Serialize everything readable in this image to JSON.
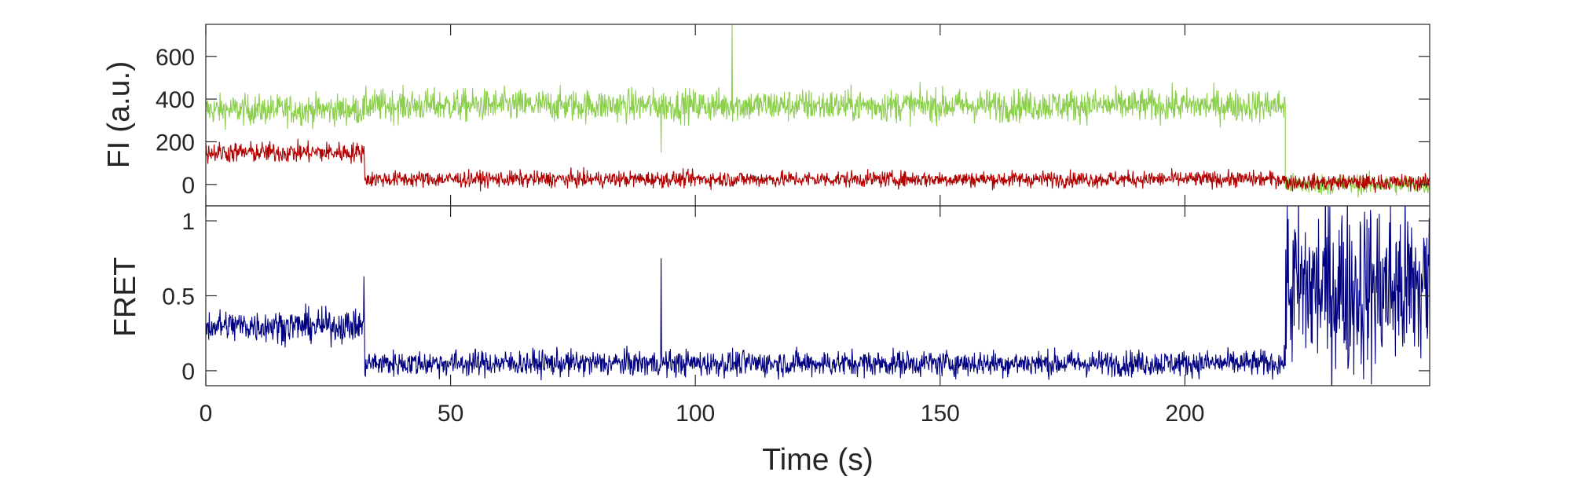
{
  "chart_data": [
    {
      "type": "line",
      "title": "",
      "xlabel": "",
      "ylabel": "FI (a.u.)",
      "xlim": [
        0,
        250
      ],
      "ylim": [
        -100,
        750
      ],
      "yticks": [
        0,
        200,
        400,
        600
      ],
      "grid": false,
      "series": [
        {
          "color": "#8ccf4d",
          "segments": [
            {
              "x": [
                0,
                32.5
              ],
              "mean": 350,
              "noise": 65
            },
            {
              "x": [
                32.5,
                220.5
              ],
              "mean": 370,
              "noise": 70
            },
            {
              "x": [
                220.5,
                250
              ],
              "mean": 0,
              "noise": 45
            }
          ],
          "spikes": [
            {
              "x": 107.5,
              "y": 750
            },
            {
              "x": 93,
              "y": 150
            }
          ]
        },
        {
          "color": "#b00000",
          "segments": [
            {
              "x": [
                0,
                32.5
              ],
              "mean": 150,
              "noise": 45
            },
            {
              "x": [
                32.5,
                220.5
              ],
              "mean": 25,
              "noise": 35
            },
            {
              "x": [
                220.5,
                250
              ],
              "mean": 10,
              "noise": 35
            }
          ],
          "spikes": []
        }
      ]
    },
    {
      "type": "line",
      "title": "",
      "xlabel": "Time (s)",
      "ylabel": "FRET",
      "xlim": [
        0,
        250
      ],
      "ylim": [
        -0.1,
        1.1
      ],
      "xticks": [
        0,
        50,
        100,
        150,
        200
      ],
      "yticks": [
        0,
        0.5,
        1
      ],
      "grid": false,
      "series": [
        {
          "color": "#000080",
          "segments": [
            {
              "x": [
                0,
                32.5
              ],
              "mean": 0.3,
              "noise": 0.1
            },
            {
              "x": [
                32.5,
                220.5
              ],
              "mean": 0.05,
              "noise": 0.08
            },
            {
              "x": [
                220.5,
                250
              ],
              "mean": 0.55,
              "noise": 0.55
            }
          ],
          "spikes": [
            {
              "x": 93,
              "y": 0.75
            },
            {
              "x": 32.3,
              "y": 0.63
            }
          ]
        }
      ]
    }
  ]
}
